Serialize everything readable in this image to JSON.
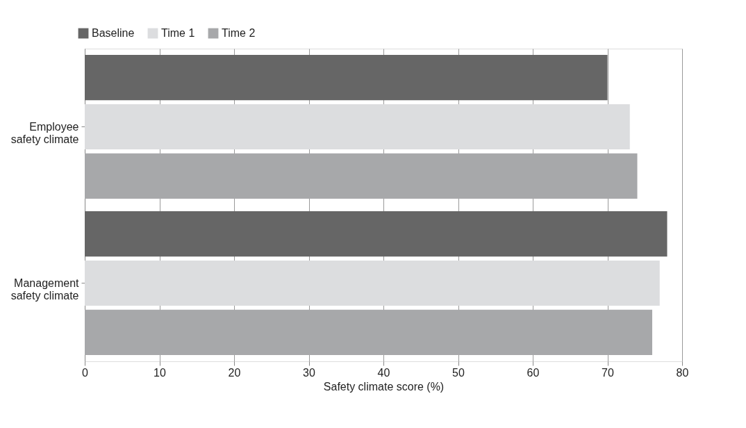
{
  "chart_data": {
    "type": "bar",
    "orientation": "horizontal",
    "xlabel": "Safety climate score (%)",
    "categories": [
      "Employee safety climate",
      "Management safety climate"
    ],
    "series": [
      {
        "name": "Baseline",
        "color": "#666666",
        "values": [
          70,
          78
        ]
      },
      {
        "name": "Time 1",
        "color": "#dcdddf",
        "values": [
          73,
          77
        ]
      },
      {
        "name": "Time 2",
        "color": "#a7a8aa",
        "values": [
          74,
          76
        ]
      }
    ],
    "xlim": [
      0,
      80
    ],
    "xticks": [
      0,
      10,
      20,
      30,
      40,
      50,
      60,
      70,
      80
    ],
    "grid": "x",
    "legend": "top left"
  }
}
